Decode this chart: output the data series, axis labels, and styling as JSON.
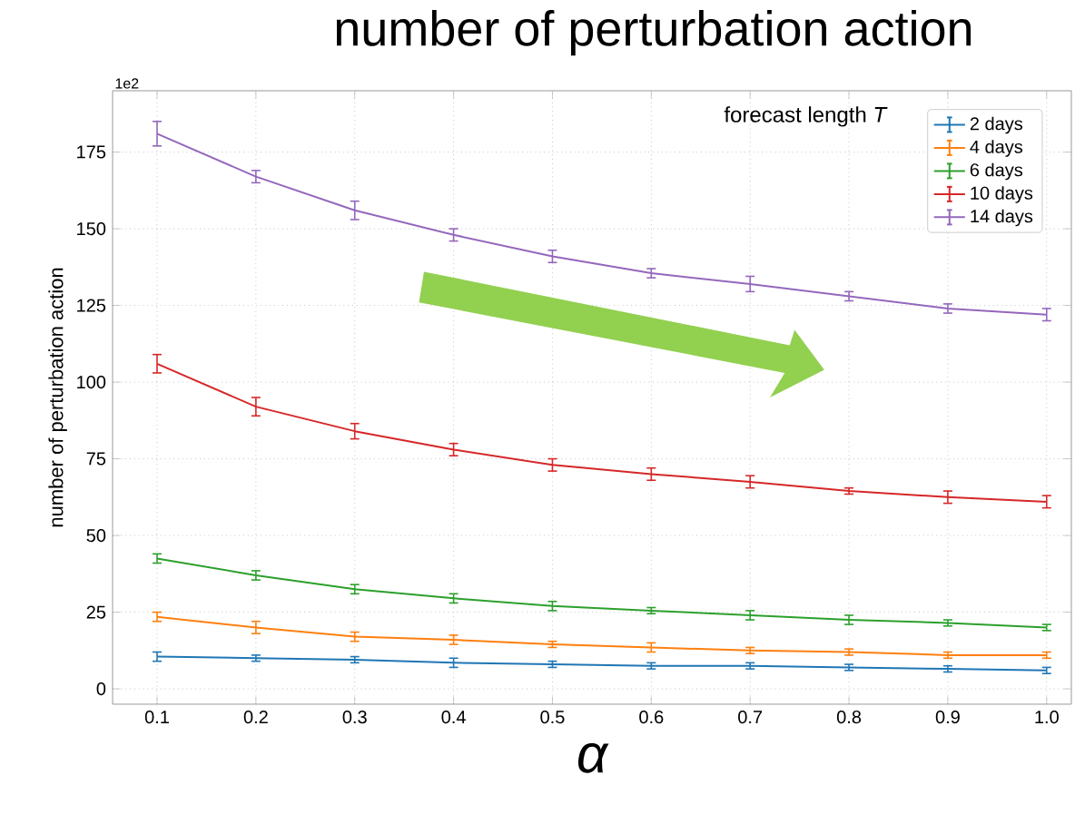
{
  "chart_data": {
    "type": "line",
    "title": "number of perturbation action",
    "xlabel": "α",
    "ylabel": "number of perturbation action",
    "legend_title": "forecast length *T*",
    "annotations": [
      "1e2"
    ],
    "x": [
      0.1,
      0.2,
      0.3,
      0.4,
      0.5,
      0.6,
      0.7,
      0.8,
      0.9,
      1.0
    ],
    "series": [
      {
        "name": "2 days",
        "color": "#1f77b4",
        "values": [
          10.5,
          10,
          9.5,
          8.5,
          8,
          7.5,
          7.5,
          7,
          6.5,
          6
        ],
        "errors": [
          1.5,
          1,
          1,
          1.5,
          1,
          1,
          1,
          1,
          1,
          1
        ]
      },
      {
        "name": "4 days",
        "color": "#ff7f0e",
        "values": [
          23.5,
          20,
          17,
          16,
          14.5,
          13.5,
          12.5,
          12,
          11,
          11
        ],
        "errors": [
          1.5,
          2,
          1.5,
          1.5,
          1,
          1.5,
          1,
          1,
          1,
          1
        ]
      },
      {
        "name": "6 days",
        "color": "#2ca02c",
        "values": [
          42.5,
          37,
          32.5,
          29.5,
          27,
          25.5,
          24,
          22.5,
          21.5,
          20
        ],
        "errors": [
          1.5,
          1.5,
          1.5,
          1.5,
          1.5,
          1,
          1.5,
          1.5,
          1,
          1
        ]
      },
      {
        "name": "10 days",
        "color": "#d62728",
        "values": [
          106,
          92,
          84,
          78,
          73,
          70,
          67.5,
          64.5,
          62.5,
          61
        ],
        "errors": [
          3,
          3,
          2.5,
          2,
          2,
          2,
          2,
          1,
          2,
          2
        ]
      },
      {
        "name": "14 days",
        "color": "#9467bd",
        "values": [
          181,
          167,
          156,
          148,
          141,
          135.5,
          132,
          128,
          124,
          122
        ],
        "errors": [
          4,
          2,
          3,
          2,
          2,
          1.5,
          2.5,
          1.5,
          1.5,
          2
        ]
      }
    ],
    "xlim": [
      0.055,
      1.025
    ],
    "ylim": [
      -5,
      195
    ],
    "xticks": [
      0.1,
      0.2,
      0.3,
      0.4,
      0.5,
      0.6,
      0.7,
      0.8,
      0.9,
      {
        "value": 1.0,
        "label": "1.0"
      }
    ],
    "yticks": [
      0,
      25,
      50,
      75,
      100,
      125,
      150,
      175
    ],
    "grid": true,
    "legend": "top right",
    "marker": "none",
    "line_style": "solid"
  }
}
